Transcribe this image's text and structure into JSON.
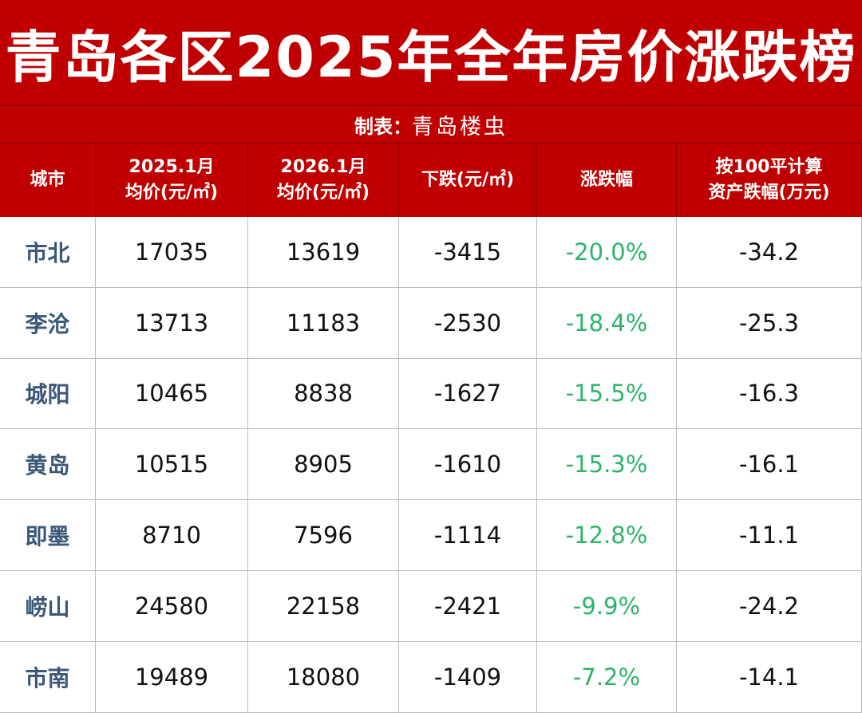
{
  "header": {
    "title": "青岛各区2025年全年房价涨跌榜",
    "credit_label": "制表：",
    "credit_author": "青岛楼虫"
  },
  "table": {
    "columns": [
      "城市",
      "2025.1月\n均价(元/㎡)",
      "2026.1月\n均价(元/㎡)",
      "下跌(元/㎡)",
      "涨跌幅",
      "按100平计算\n资产跌幅(万元)"
    ],
    "rows": [
      [
        "市北",
        "17035",
        "13619",
        "-3415",
        "-20.0%",
        "-34.2"
      ],
      [
        "李沧",
        "13713",
        "11183",
        "-2530",
        "-18.4%",
        "-25.3"
      ],
      [
        "城阳",
        "10465",
        "8838",
        "-1627",
        "-15.5%",
        "-16.3"
      ],
      [
        "黄岛",
        "10515",
        "8905",
        "-1610",
        "-15.3%",
        "-16.1"
      ],
      [
        "即墨",
        "8710",
        "7596",
        "-1114",
        "-12.8%",
        "-11.1"
      ],
      [
        "崂山",
        "24580",
        "22158",
        "-2421",
        "-9.9%",
        "-24.2"
      ],
      [
        "市南",
        "19489",
        "18080",
        "-1409",
        "-7.2%",
        "-14.1"
      ]
    ]
  }
}
